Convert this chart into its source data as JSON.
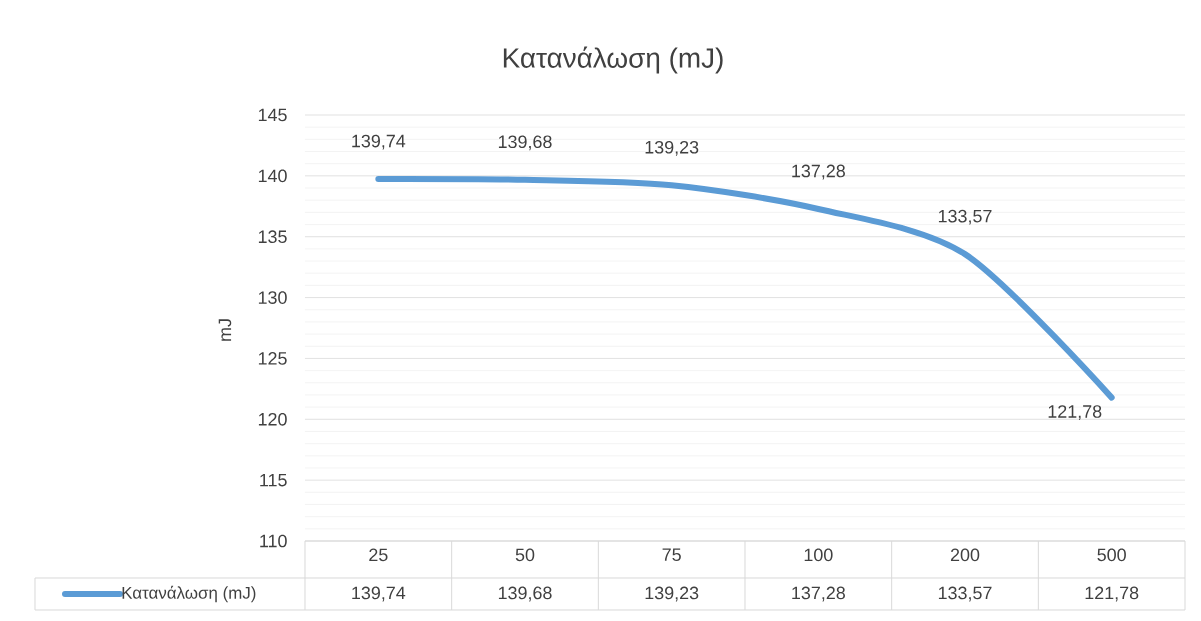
{
  "chart_data": {
    "type": "line",
    "title": "Κατανάλωση (mJ)",
    "ylabel": "mJ",
    "categories": [
      "25",
      "50",
      "75",
      "100",
      "200",
      "500"
    ],
    "series": [
      {
        "name": "Κατανάλωση (mJ)",
        "color": "#5b9bd5",
        "values": [
          139.74,
          139.68,
          139.23,
          137.28,
          133.57,
          121.78
        ],
        "value_labels": [
          "139,74",
          "139,68",
          "139,23",
          "137,28",
          "133,57",
          "121,78"
        ]
      }
    ],
    "ylim": [
      110,
      145
    ],
    "yticks": [
      110,
      115,
      120,
      125,
      130,
      135,
      140,
      145
    ],
    "grid": "y",
    "legend": "bottom",
    "marker": "none",
    "line_style": "solid"
  }
}
